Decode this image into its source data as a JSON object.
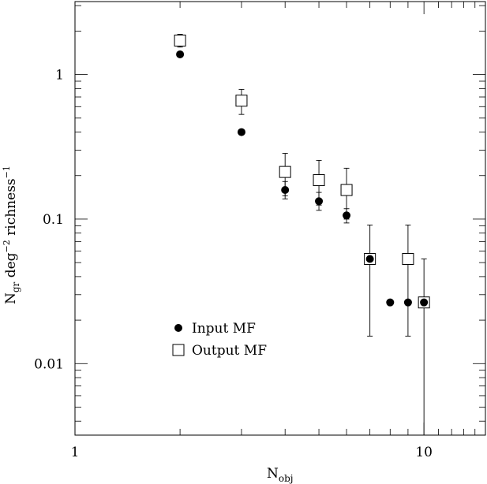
{
  "chart_data": {
    "type": "scatter",
    "xlabel": "N",
    "xlabel_sub": "obj",
    "ylabel_parts": [
      "N",
      "gr",
      " deg",
      "−2",
      " richness",
      "−1"
    ],
    "xscale": "log",
    "yscale": "log",
    "xlim": [
      1,
      15
    ],
    "ylim": [
      0.0032,
      3.2
    ],
    "x_tick_labels": [
      "1",
      "10"
    ],
    "y_tick_labels": [
      "1",
      "0.1",
      "0.01"
    ],
    "legend_position": "lower-left",
    "series": [
      {
        "name": "Input MF",
        "marker": "filled-circle",
        "points": [
          {
            "x": 2,
            "y": 1.38
          },
          {
            "x": 3,
            "y": 0.4
          },
          {
            "x": 4,
            "y": 0.159
          },
          {
            "x": 5,
            "y": 0.133
          },
          {
            "x": 6,
            "y": 0.106
          },
          {
            "x": 7,
            "y": 0.053
          },
          {
            "x": 8,
            "y": 0.0265
          },
          {
            "x": 9,
            "y": 0.0265
          },
          {
            "x": 10,
            "y": 0.0265
          }
        ],
        "errors": [
          {
            "x": 4,
            "lo": 0.138,
            "hi": 0.182
          },
          {
            "x": 5,
            "lo": 0.115,
            "hi": 0.153
          },
          {
            "x": 6,
            "lo": 0.094,
            "hi": 0.118
          }
        ]
      },
      {
        "name": "Output MF",
        "marker": "open-square",
        "points": [
          {
            "x": 2,
            "y": 1.72
          },
          {
            "x": 3,
            "y": 0.66
          },
          {
            "x": 4,
            "y": 0.212
          },
          {
            "x": 5,
            "y": 0.186
          },
          {
            "x": 6,
            "y": 0.159
          },
          {
            "x": 7,
            "y": 0.053
          },
          {
            "x": 9,
            "y": 0.053
          },
          {
            "x": 10,
            "y": 0.0265
          }
        ],
        "errors": [
          {
            "x": 2,
            "lo": 1.55,
            "hi": 1.9
          },
          {
            "x": 3,
            "lo": 0.53,
            "hi": 0.79
          },
          {
            "x": 4,
            "lo": 0.145,
            "hi": 0.285
          },
          {
            "x": 5,
            "lo": 0.125,
            "hi": 0.255
          },
          {
            "x": 6,
            "lo": 0.1,
            "hi": 0.225
          },
          {
            "x": 7,
            "lo": 0.0155,
            "hi": 0.091
          },
          {
            "x": 9,
            "lo": 0.0155,
            "hi": 0.091
          },
          {
            "x": 10,
            "lo": 0.0032,
            "hi": 0.053
          }
        ]
      }
    ]
  }
}
